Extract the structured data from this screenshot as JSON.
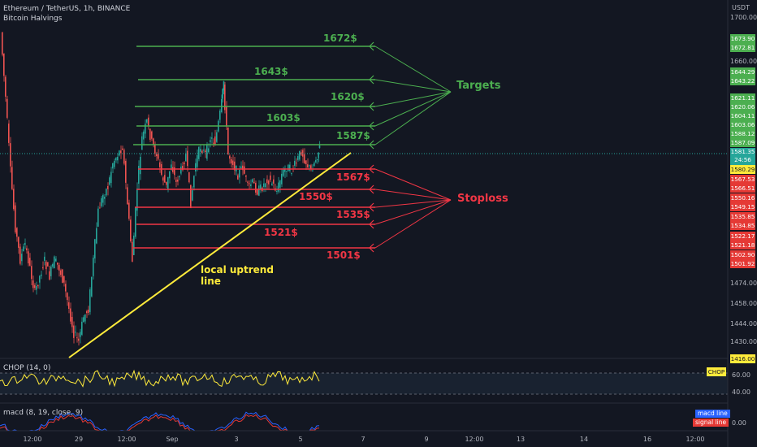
{
  "header": {
    "symbol_line": "Ethereum / TetherUS, 1h, BINANCE",
    "indicator_line": "Bitcoin Halvings"
  },
  "axis": {
    "currency": "USDT",
    "price_ticks": [
      "1700.00",
      "1660.00",
      "1474.00",
      "1458.00",
      "1444.00",
      "1430.00",
      "1416.00"
    ],
    "time_ticks": [
      "12:00",
      "29",
      "12:00",
      "Sep",
      "3",
      "5",
      "7",
      "9",
      "12:00",
      "13",
      "14",
      "16",
      "12:00"
    ]
  },
  "price_tags": {
    "green": [
      "1673.90",
      "1672.81",
      "1644.29",
      "1643.22",
      "1621.11",
      "1620.06",
      "1604.11",
      "1603.06",
      "1588.12",
      "1587.09"
    ],
    "current": {
      "value": "1581.35",
      "countdown": "24:56"
    },
    "yellow": "1580.29",
    "red": [
      "1567.53",
      "1566.51",
      "1550.16",
      "1549.15",
      "1535.85",
      "1534.85",
      "1522.17",
      "1521.18",
      "1502.90",
      "1501.92"
    ]
  },
  "annotations": {
    "targets": [
      "1672$",
      "1643$",
      "1620$",
      "1603$",
      "1587$"
    ],
    "targets_label": "Targets",
    "stoplosses": [
      "1567$",
      "1550$",
      "1535$",
      "1521$",
      "1501$"
    ],
    "stoploss_label": "Stoploss",
    "trendline_label": [
      "local uptrend",
      "line"
    ]
  },
  "chop": {
    "title": "CHOP (14, 0)",
    "badge": "CHOP",
    "ticks": [
      "60.00",
      "40.00"
    ]
  },
  "macd": {
    "title": "macd (8, 19, close, 9)",
    "legend": [
      "macd line",
      "signal line"
    ],
    "tick": "0.00"
  },
  "colors": {
    "background": "#131722",
    "target_green": "#4caf50",
    "stop_red": "#f23645",
    "trend_yellow": "#ffeb3b",
    "candle_up": "#26a69a",
    "candle_down": "#ef5350"
  }
}
